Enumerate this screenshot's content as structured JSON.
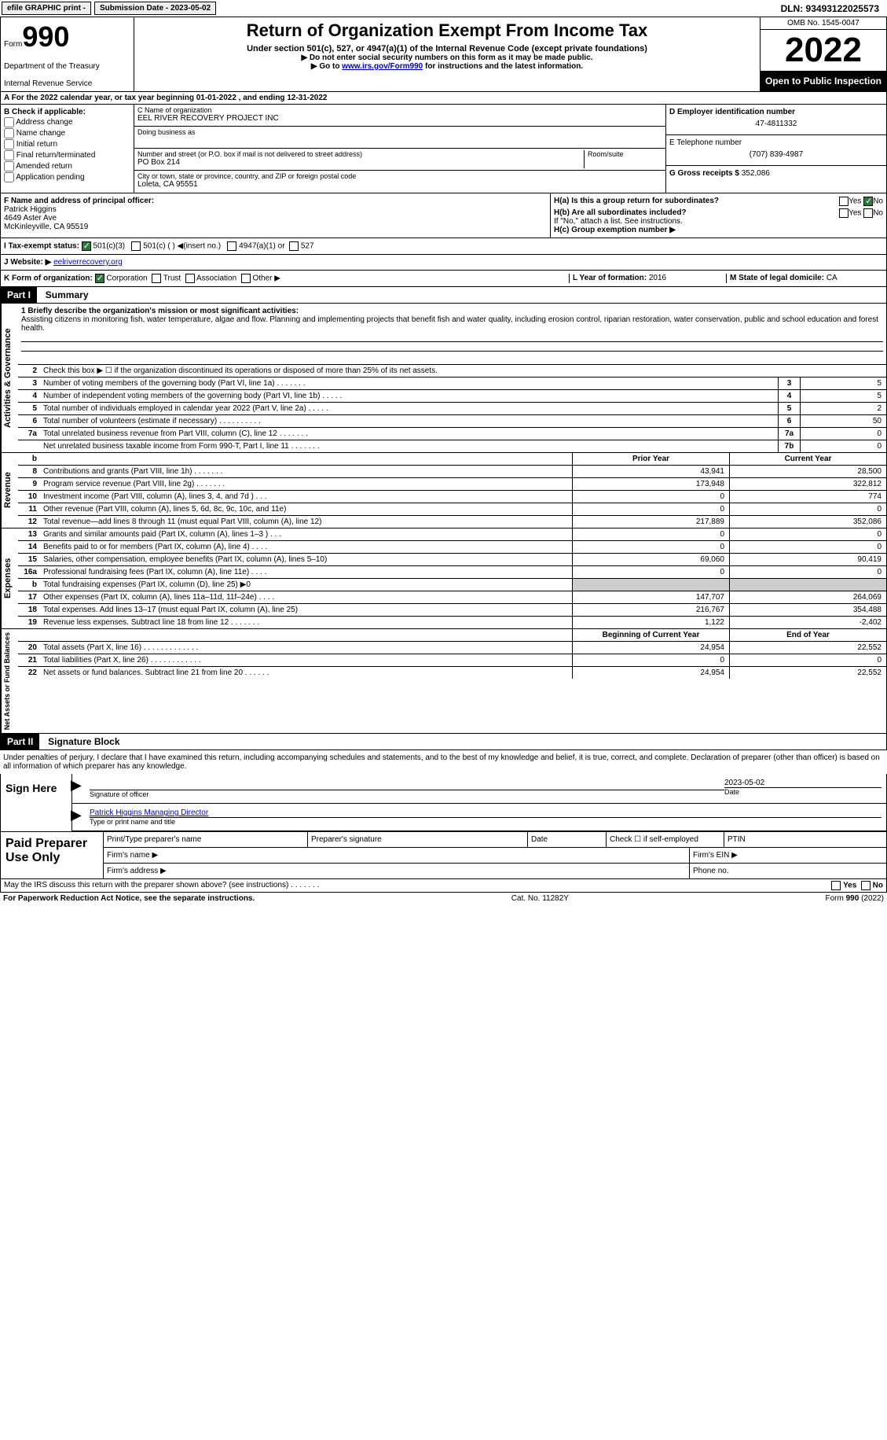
{
  "topbar": {
    "efile_label": "efile GRAPHIC print - ",
    "submission_label": "Submission Date - 2023-05-02",
    "dln_label": "DLN: 93493122025573"
  },
  "header": {
    "form_word": "Form",
    "form_number": "990",
    "dept1": "Department of the Treasury",
    "dept2": "Internal Revenue Service",
    "title": "Return of Organization Exempt From Income Tax",
    "subtitle": "Under section 501(c), 527, or 4947(a)(1) of the Internal Revenue Code (except private foundations)",
    "instr1": "▶ Do not enter social security numbers on this form as it may be made public.",
    "instr2_prefix": "▶ Go to ",
    "instr2_link": "www.irs.gov/Form990",
    "instr2_suffix": " for instructions and the latest information.",
    "omb": "OMB No. 1545-0047",
    "year": "2022",
    "inspection": "Open to Public Inspection"
  },
  "sectionA": "A  For the 2022 calendar year, or tax year beginning 01-01-2022     , and ending 12-31-2022",
  "colB": {
    "header": "B Check if applicable:",
    "opts": [
      "Address change",
      "Name change",
      "Initial return",
      "Final return/terminated",
      "Amended return",
      "Application pending"
    ]
  },
  "colC": {
    "name_lbl": "C Name of organization",
    "name": "EEL RIVER RECOVERY PROJECT INC",
    "dba_lbl": "Doing business as",
    "addr_lbl": "Number and street (or P.O. box if mail is not delivered to street address)",
    "room_lbl": "Room/suite",
    "addr": "PO Box 214",
    "city_lbl": "City or town, state or province, country, and ZIP or foreign postal code",
    "city": "Loleta, CA  95551"
  },
  "colD": {
    "ein_lbl": "D Employer identification number",
    "ein": "47-4811332",
    "phone_lbl": "E Telephone number",
    "phone": "(707) 839-4987",
    "gross_lbl": "G Gross receipts $",
    "gross": "352,086"
  },
  "officer": {
    "f_lbl": "F Name and address of principal officer:",
    "name": "Patrick Higgins",
    "addr1": "4649 Aster Ave",
    "addr2": "McKinleyville, CA  95519",
    "i_lbl": "I  Tax-exempt status:",
    "i_501c3": "501(c)(3)",
    "i_501c": "501(c) (  ) ◀(insert no.)",
    "i_4947": "4947(a)(1) or",
    "i_527": "527",
    "j_lbl": "J  Website: ▶",
    "j_val": "eelriverrecovery.org"
  },
  "hgroup": {
    "ha": "H(a)  Is this a group return for subordinates?",
    "hb": "H(b)  Are all subordinates included?",
    "hb_note": "If \"No,\" attach a list. See instructions.",
    "hc": "H(c)  Group exemption number ▶",
    "yes": "Yes",
    "no": "No"
  },
  "rowK": {
    "k_lbl": "K Form of organization:",
    "k_corp": "Corporation",
    "k_trust": "Trust",
    "k_assoc": "Association",
    "k_other": "Other ▶",
    "l_lbl": "L Year of formation:",
    "l_val": "2016",
    "m_lbl": "M State of legal domicile:",
    "m_val": "CA"
  },
  "part1": {
    "label": "Part I",
    "title": "Summary"
  },
  "mission": {
    "lbl": "1  Briefly describe the organization's mission or most significant activities:",
    "text": "Assisting citizens in monitoring fish, water temperature, algae and flow. Planning and implementing projects that benefit fish and water quality, including erosion control, riparian restoration, water conservation, public and school education and forest health."
  },
  "governance": {
    "side": "Activities & Governance",
    "line2": "Check this box ▶ ☐ if the organization discontinued its operations or disposed of more than 25% of its net assets.",
    "lines": [
      {
        "n": "3",
        "d": "Number of voting members of the governing body (Part VI, line 1a)   .    .    .    .    .    .    .",
        "b": "3",
        "v": "5"
      },
      {
        "n": "4",
        "d": "Number of independent voting members of the governing body (Part VI, line 1b)  .    .    .    .    .",
        "b": "4",
        "v": "5"
      },
      {
        "n": "5",
        "d": "Total number of individuals employed in calendar year 2022 (Part V, line 2a)   .    .    .    .    .",
        "b": "5",
        "v": "2"
      },
      {
        "n": "6",
        "d": "Total number of volunteers (estimate if necessary)    .    .    .    .    .    .    .    .    .    .",
        "b": "6",
        "v": "50"
      },
      {
        "n": "7a",
        "d": "Total unrelated business revenue from Part VIII, column (C), line 12    .    .    .    .    .    .    .",
        "b": "7a",
        "v": "0"
      },
      {
        "n": "",
        "d": "Net unrelated business taxable income from Form 990-T, Part I, line 11   .    .    .    .    .    .    .",
        "b": "7b",
        "v": "0"
      }
    ]
  },
  "revenue": {
    "side": "Revenue",
    "prior_hdr": "Prior Year",
    "curr_hdr": "Current Year",
    "lines": [
      {
        "n": "8",
        "d": "Contributions and grants (Part VIII, line 1h)   .    .    .    .    .    .    .",
        "p": "43,941",
        "c": "28,500"
      },
      {
        "n": "9",
        "d": "Program service revenue (Part VIII, line 2g)   .    .    .    .    .    .    .",
        "p": "173,948",
        "c": "322,812"
      },
      {
        "n": "10",
        "d": "Investment income (Part VIII, column (A), lines 3, 4, and 7d )   .    .    .",
        "p": "0",
        "c": "774"
      },
      {
        "n": "11",
        "d": "Other revenue (Part VIII, column (A), lines 5, 6d, 8c, 9c, 10c, and 11e)",
        "p": "0",
        "c": "0"
      },
      {
        "n": "12",
        "d": "Total revenue—add lines 8 through 11 (must equal Part VIII, column (A), line 12)",
        "p": "217,889",
        "c": "352,086"
      }
    ]
  },
  "expenses": {
    "side": "Expenses",
    "lines": [
      {
        "n": "13",
        "d": "Grants and similar amounts paid (Part IX, column (A), lines 1–3 )  .    .    .",
        "p": "0",
        "c": "0"
      },
      {
        "n": "14",
        "d": "Benefits paid to or for members (Part IX, column (A), line 4)   .    .    .    .",
        "p": "0",
        "c": "0"
      },
      {
        "n": "15",
        "d": "Salaries, other compensation, employee benefits (Part IX, column (A), lines 5–10)",
        "p": "69,060",
        "c": "90,419"
      },
      {
        "n": "16a",
        "d": "Professional fundraising fees (Part IX, column (A), line 11e)   .    .    .    .",
        "p": "0",
        "c": "0"
      },
      {
        "n": "b",
        "d": "Total fundraising expenses (Part IX, column (D), line 25) ▶0",
        "p": "",
        "c": "",
        "shaded": true
      },
      {
        "n": "17",
        "d": "Other expenses (Part IX, column (A), lines 11a–11d, 11f–24e)   .    .    .    .",
        "p": "147,707",
        "c": "264,069"
      },
      {
        "n": "18",
        "d": "Total expenses. Add lines 13–17 (must equal Part IX, column (A), line 25)",
        "p": "216,767",
        "c": "354,488"
      },
      {
        "n": "19",
        "d": "Revenue less expenses. Subtract line 18 from line 12  .    .    .    .    .    .    .",
        "p": "1,122",
        "c": "-2,402"
      }
    ]
  },
  "netassets": {
    "side": "Net Assets or Fund Balances",
    "begin_hdr": "Beginning of Current Year",
    "end_hdr": "End of Year",
    "lines": [
      {
        "n": "20",
        "d": "Total assets (Part X, line 16)  .    .    .    .    .    .    .    .    .    .    .    .    .",
        "p": "24,954",
        "c": "22,552"
      },
      {
        "n": "21",
        "d": "Total liabilities (Part X, line 26)  .    .    .    .    .    .    .    .    .    .    .    .",
        "p": "0",
        "c": "0"
      },
      {
        "n": "22",
        "d": "Net assets or fund balances. Subtract line 21 from line 20  .    .    .    .    .    .",
        "p": "24,954",
        "c": "22,552"
      }
    ]
  },
  "part2": {
    "label": "Part II",
    "title": "Signature Block"
  },
  "sig": {
    "text": "Under penalties of perjury, I declare that I have examined this return, including accompanying schedules and statements, and to the best of my knowledge and belief, it is true, correct, and complete. Declaration of preparer (other than officer) is based on all information of which preparer has any knowledge.",
    "sign_here": "Sign Here",
    "sig_officer": "Signature of officer",
    "date": "2023-05-02",
    "date_lbl": "Date",
    "name": "Patrick Higgins  Managing Director",
    "name_lbl": "Type or print name and title"
  },
  "preparer": {
    "label": "Paid Preparer Use Only",
    "prep_name": "Print/Type preparer's name",
    "prep_sig": "Preparer's signature",
    "prep_date": "Date",
    "prep_check": "Check ☐ if self-employed",
    "ptin": "PTIN",
    "firm_name": "Firm's name   ▶",
    "firm_ein": "Firm's EIN ▶",
    "firm_addr": "Firm's address ▶",
    "phone": "Phone no."
  },
  "footer": {
    "discuss": "May the IRS discuss this return with the preparer shown above? (see instructions)   .    .    .    .    .    .    .",
    "yes": "Yes",
    "no": "No",
    "notice": "For Paperwork Reduction Act Notice, see the separate instructions.",
    "cat": "Cat. No. 11282Y",
    "form": "Form 990 (2022)"
  }
}
